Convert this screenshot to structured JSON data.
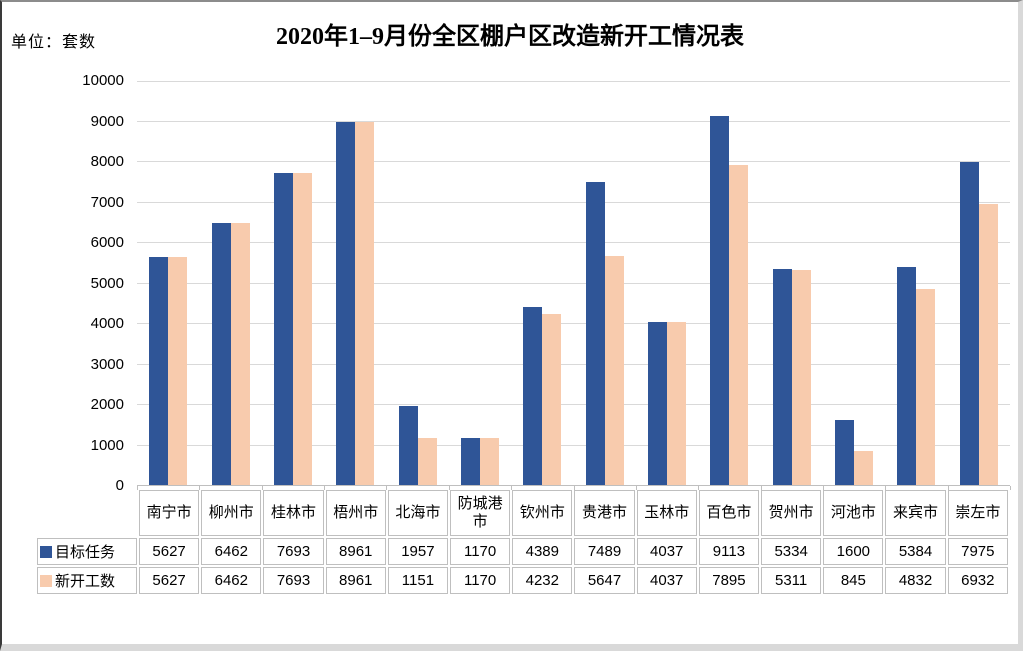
{
  "chart_data": {
    "type": "bar",
    "title": "2020年1–9月份全区棚户区改造新开工情况表",
    "unit_label": "单位：套数",
    "categories": [
      "南宁市",
      "柳州市",
      "桂林市",
      "梧州市",
      "北海市",
      "防城港市",
      "钦州市",
      "贵港市",
      "玉林市",
      "百色市",
      "贺州市",
      "河池市",
      "来宾市",
      "崇左市"
    ],
    "series": [
      {
        "name": "目标任务",
        "color": "#2F5597",
        "values": [
          5627,
          6462,
          7693,
          8961,
          1957,
          1170,
          4389,
          7489,
          4037,
          9113,
          5334,
          1600,
          5384,
          7975
        ]
      },
      {
        "name": "新开工数",
        "color": "#F8CBAD",
        "values": [
          5627,
          6462,
          7693,
          8961,
          1151,
          1170,
          4232,
          5647,
          4037,
          7895,
          5311,
          845,
          4832,
          6932
        ]
      }
    ],
    "ylim": [
      0,
      10000
    ],
    "ytick_step": 1000,
    "grid": true,
    "legend_position": "data-table-left",
    "colors": {
      "gridline": "#D9D9D9",
      "axis_line": "#BFBFBF",
      "tick": "#BFBFBF",
      "table_border": "#BFBFBF",
      "text": "#000000"
    }
  }
}
